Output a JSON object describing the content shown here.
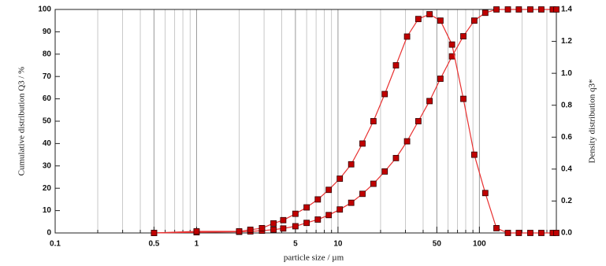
{
  "chart_data": {
    "type": "line",
    "xlabel": "particle size / µm",
    "ylabel": "Cumulative distribution Q3 / %",
    "y2label": "Density distribution q3*",
    "xscale": "log",
    "xlim": [
      0.1,
      350
    ],
    "xticks": [
      0.1,
      0.5,
      1,
      5,
      10,
      50,
      100
    ],
    "xgrid": [
      0.2,
      0.3,
      0.4,
      0.6,
      0.7,
      0.8,
      0.9,
      2,
      3,
      4,
      6,
      7,
      8,
      9,
      20,
      30,
      40,
      60,
      70,
      80,
      90,
      200,
      300
    ],
    "ylim": [
      0,
      100
    ],
    "yticks": [
      0,
      10,
      20,
      30,
      40,
      50,
      60,
      70,
      80,
      90,
      100
    ],
    "y2lim": [
      0,
      1.4
    ],
    "y2ticks": [
      {
        "value": 0,
        "label": "0.0"
      },
      0.2,
      0.4,
      0.6,
      0.8,
      {
        "value": 1,
        "label": "1.0"
      },
      1.2,
      1.4
    ],
    "grid": true,
    "series": [
      {
        "color": "#e83030",
        "marker_color": "#c00000",
        "axis": "y",
        "x": [
          0.5,
          1,
          2,
          2.4,
          2.9,
          3.5,
          4.1,
          5,
          6,
          7.2,
          8.6,
          10.3,
          12.4,
          14.9,
          17.8,
          21.4,
          25.7,
          30.8,
          37,
          44.4,
          53,
          64,
          77,
          92,
          110,
          132,
          159,
          190,
          229,
          274,
          330,
          350
        ],
        "values": [
          0,
          0.3,
          0.5,
          0.7,
          1,
          1.5,
          2,
          3,
          4.5,
          6,
          8,
          10.5,
          13.5,
          17.5,
          22,
          27.5,
          33.5,
          41,
          50,
          59,
          69,
          79,
          88,
          95,
          98.5,
          100,
          100,
          100,
          100,
          100,
          100,
          100
        ]
      },
      {
        "color": "#e83030",
        "marker_color": "#c00000",
        "axis": "y2",
        "x": [
          0.5,
          1,
          2,
          2.4,
          2.9,
          3.5,
          4.1,
          5,
          6,
          7.2,
          8.6,
          10.3,
          12.4,
          14.9,
          17.8,
          21.4,
          25.7,
          30.8,
          37,
          44.4,
          53,
          64,
          77,
          92,
          110,
          132,
          159,
          190,
          229,
          274,
          330,
          350
        ],
        "values": [
          0,
          0.01,
          0.01,
          0.02,
          0.03,
          0.06,
          0.08,
          0.12,
          0.16,
          0.21,
          0.27,
          0.34,
          0.43,
          0.56,
          0.7,
          0.87,
          1.05,
          1.23,
          1.34,
          1.37,
          1.33,
          1.18,
          0.84,
          0.49,
          0.25,
          0.03,
          0,
          0,
          0,
          0,
          0,
          0
        ]
      }
    ]
  }
}
